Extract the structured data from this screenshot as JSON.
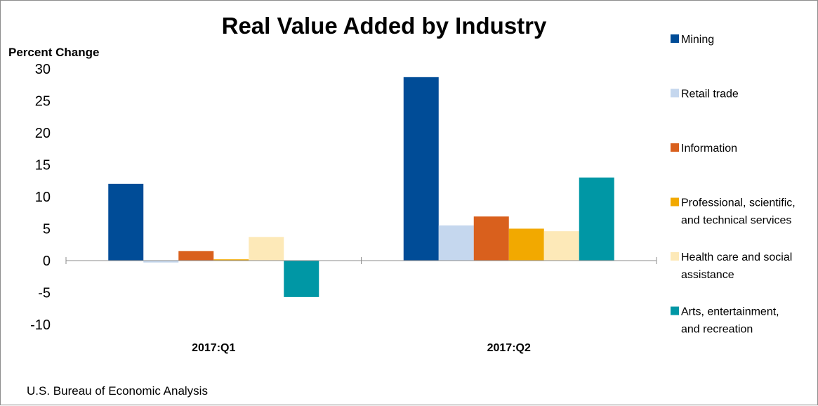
{
  "chart_data": {
    "type": "bar",
    "title": "Real Value Added by Industry",
    "ylabel": "Percent Change",
    "xlabel": "",
    "categories": [
      "2017:Q1",
      "2017:Q2"
    ],
    "ylim": [
      -10,
      30
    ],
    "yticks": [
      30,
      25,
      20,
      15,
      10,
      5,
      0,
      -5,
      -10
    ],
    "grid": false,
    "legend_position": "right",
    "series": [
      {
        "name": "Mining",
        "legend_lines": [
          "Mining"
        ],
        "color": "#004c97",
        "values": [
          12.0,
          28.7
        ]
      },
      {
        "name": "Retail trade",
        "legend_lines": [
          "Retail trade"
        ],
        "color": "#c5d7ee",
        "values": [
          -0.3,
          5.5
        ]
      },
      {
        "name": "Information",
        "legend_lines": [
          "Information"
        ],
        "color": "#d9601d",
        "values": [
          1.5,
          6.9
        ]
      },
      {
        "name": "Professional, scientific, and technical services",
        "legend_lines": [
          "Professional, scientific,",
          "and technical services"
        ],
        "color": "#f2a900",
        "values": [
          0.2,
          5.0
        ]
      },
      {
        "name": "Health care and social assistance",
        "legend_lines": [
          "Health care and social",
          "assistance"
        ],
        "color": "#fde9b8",
        "values": [
          3.7,
          4.6
        ]
      },
      {
        "name": "Arts, entertainment, and recreation",
        "legend_lines": [
          "Arts, entertainment,",
          "and recreation"
        ],
        "color": "#0097a5",
        "values": [
          -5.7,
          13.0
        ]
      }
    ],
    "source": "U.S. Bureau of Economic Analysis"
  }
}
